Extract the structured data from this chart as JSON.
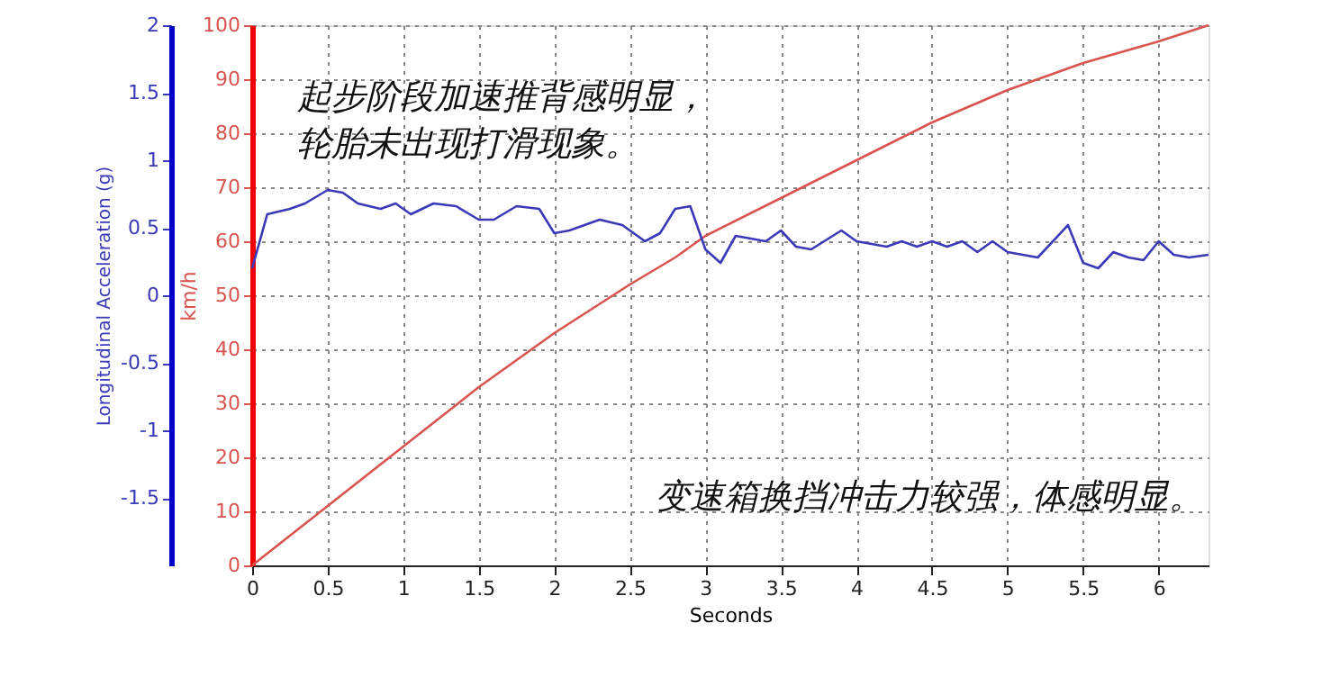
{
  "chart_data": {
    "type": "line",
    "xlabel": "Seconds",
    "ylabel": "km/h",
    "y2label": "Longitudinal Acceleration (g)",
    "xlim": [
      0,
      6.33
    ],
    "xticks": [
      0,
      0.5,
      1,
      1.5,
      2,
      2.5,
      3,
      3.5,
      4,
      4.5,
      5,
      5.5,
      6
    ],
    "ylim": [
      0,
      100
    ],
    "yticks": [
      0,
      10,
      20,
      30,
      40,
      50,
      60,
      70,
      80,
      90,
      100
    ],
    "y2lim": [
      -2,
      2
    ],
    "y2ticks": [
      -1.5,
      -1,
      -0.5,
      0,
      0.5,
      1,
      1.5,
      2
    ],
    "grid": true,
    "marker": "none",
    "line_style": "solid",
    "annotations": [
      "起步阶段加速推背感明显，轮胎未出现打滑现象。",
      "变速箱换挡冲击力较强，体感明显。"
    ],
    "series": [
      {
        "color": "#d9534f",
        "x": [
          0,
          0.5,
          1,
          1.5,
          2,
          2.5,
          2.8,
          3,
          3.5,
          4,
          4.5,
          5,
          5.5,
          6,
          6.33
        ],
        "values": [
          0,
          11,
          22,
          33,
          43,
          52,
          57,
          61,
          68,
          75,
          82,
          88,
          93,
          97,
          100
        ]
      },
      {
        "color": "#3a3ab8",
        "axis": "y2",
        "x": [
          0,
          0.1,
          0.25,
          0.35,
          0.5,
          0.6,
          0.7,
          0.85,
          0.95,
          1.05,
          1.2,
          1.35,
          1.5,
          1.6,
          1.75,
          1.9,
          2.0,
          2.1,
          2.3,
          2.45,
          2.6,
          2.7,
          2.8,
          2.9,
          3.0,
          3.1,
          3.2,
          3.4,
          3.5,
          3.6,
          3.7,
          3.9,
          4.0,
          4.2,
          4.3,
          4.4,
          4.5,
          4.6,
          4.7,
          4.8,
          4.9,
          5.0,
          5.2,
          5.4,
          5.5,
          5.6,
          5.7,
          5.8,
          5.9,
          6.0,
          6.1,
          6.2,
          6.33
        ],
        "values": [
          0.2,
          0.6,
          0.64,
          0.68,
          0.78,
          0.76,
          0.68,
          0.64,
          0.68,
          0.6,
          0.68,
          0.66,
          0.56,
          0.56,
          0.66,
          0.64,
          0.46,
          0.48,
          0.56,
          0.52,
          0.4,
          0.46,
          0.64,
          0.66,
          0.34,
          0.24,
          0.44,
          0.4,
          0.48,
          0.36,
          0.34,
          0.48,
          0.4,
          0.36,
          0.4,
          0.36,
          0.4,
          0.36,
          0.4,
          0.32,
          0.4,
          0.32,
          0.28,
          0.52,
          0.24,
          0.2,
          0.32,
          0.28,
          0.26,
          0.4,
          0.3,
          0.28,
          0.3
        ]
      }
    ]
  }
}
